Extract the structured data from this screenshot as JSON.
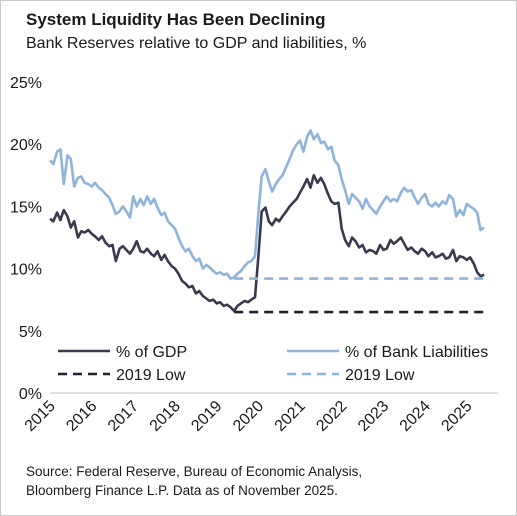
{
  "header": {
    "title": "System Liquidity Has Been Declining",
    "subtitle": "Bank Reserves relative to GDP and liabilities, %"
  },
  "footer": {
    "source_line1": "Source: Federal Reserve, Bureau of Economic Analysis,",
    "source_line2": "Bloomberg Finance L.P. Data as of November 2025."
  },
  "colors": {
    "gdp": "#3a3a4e",
    "liabilities": "#8fb4d9",
    "gdp_low": "#1c2333",
    "liab_low": "#8fb4d9",
    "axis": "#bfbfbf"
  },
  "chart_data": {
    "type": "line",
    "title": "System Liquidity Has Been Declining",
    "subtitle": "Bank Reserves relative to GDP and liabilities, %",
    "xlim": [
      2015.0,
      2025.75
    ],
    "ylim": [
      0,
      25
    ],
    "y_ticks": [
      "0%",
      "5%",
      "10%",
      "15%",
      "20%",
      "25%"
    ],
    "x_ticks": [
      "2015",
      "2016",
      "2017",
      "2018",
      "2019",
      "2020",
      "2021",
      "2022",
      "2023",
      "2024",
      "2025"
    ],
    "x_tick_values": [
      2015,
      2016,
      2017,
      2018,
      2019,
      2020,
      2021,
      2022,
      2023,
      2024,
      2025
    ],
    "legend_placement": "bottom",
    "series": [
      {
        "name": "% of GDP",
        "style": "solid",
        "color": "#3a3a4e",
        "points": [
          [
            2015.0,
            14.0
          ],
          [
            2015.08,
            13.8
          ],
          [
            2015.17,
            14.5
          ],
          [
            2015.25,
            13.9
          ],
          [
            2015.33,
            14.7
          ],
          [
            2015.42,
            14.2
          ],
          [
            2015.5,
            13.3
          ],
          [
            2015.58,
            13.8
          ],
          [
            2015.67,
            12.5
          ],
          [
            2015.75,
            13.0
          ],
          [
            2015.83,
            12.9
          ],
          [
            2015.92,
            13.1
          ],
          [
            2016.0,
            12.8
          ],
          [
            2016.08,
            12.6
          ],
          [
            2016.17,
            12.3
          ],
          [
            2016.25,
            12.6
          ],
          [
            2016.33,
            12.1
          ],
          [
            2016.42,
            11.8
          ],
          [
            2016.5,
            11.9
          ],
          [
            2016.58,
            10.6
          ],
          [
            2016.67,
            11.6
          ],
          [
            2016.75,
            11.8
          ],
          [
            2016.83,
            11.5
          ],
          [
            2016.92,
            11.2
          ],
          [
            2017.0,
            11.6
          ],
          [
            2017.08,
            12.2
          ],
          [
            2017.17,
            11.4
          ],
          [
            2017.25,
            11.3
          ],
          [
            2017.33,
            11.6
          ],
          [
            2017.42,
            11.2
          ],
          [
            2017.5,
            11.0
          ],
          [
            2017.58,
            11.4
          ],
          [
            2017.67,
            10.7
          ],
          [
            2017.75,
            11.1
          ],
          [
            2017.83,
            10.6
          ],
          [
            2017.92,
            10.2
          ],
          [
            2018.0,
            10.0
          ],
          [
            2018.08,
            9.6
          ],
          [
            2018.17,
            9.0
          ],
          [
            2018.25,
            8.8
          ],
          [
            2018.33,
            8.5
          ],
          [
            2018.42,
            8.6
          ],
          [
            2018.5,
            8.0
          ],
          [
            2018.58,
            8.2
          ],
          [
            2018.67,
            7.8
          ],
          [
            2018.75,
            7.6
          ],
          [
            2018.83,
            7.4
          ],
          [
            2018.92,
            7.5
          ],
          [
            2019.0,
            7.2
          ],
          [
            2019.08,
            7.3
          ],
          [
            2019.17,
            7.0
          ],
          [
            2019.25,
            7.1
          ],
          [
            2019.33,
            6.9
          ],
          [
            2019.42,
            6.6
          ],
          [
            2019.5,
            7.0
          ],
          [
            2019.58,
            7.2
          ],
          [
            2019.67,
            7.4
          ],
          [
            2019.75,
            7.3
          ],
          [
            2019.83,
            7.5
          ],
          [
            2019.92,
            7.7
          ],
          [
            2020.0,
            11.0
          ],
          [
            2020.08,
            14.6
          ],
          [
            2020.17,
            14.9
          ],
          [
            2020.25,
            13.8
          ],
          [
            2020.33,
            13.5
          ],
          [
            2020.42,
            14.0
          ],
          [
            2020.5,
            13.8
          ],
          [
            2020.58,
            14.2
          ],
          [
            2020.67,
            14.6
          ],
          [
            2020.75,
            15.0
          ],
          [
            2020.83,
            15.3
          ],
          [
            2020.92,
            15.6
          ],
          [
            2021.0,
            16.1
          ],
          [
            2021.08,
            16.6
          ],
          [
            2021.17,
            17.2
          ],
          [
            2021.25,
            16.5
          ],
          [
            2021.33,
            17.5
          ],
          [
            2021.42,
            16.9
          ],
          [
            2021.5,
            17.3
          ],
          [
            2021.58,
            16.8
          ],
          [
            2021.67,
            16.0
          ],
          [
            2021.75,
            15.4
          ],
          [
            2021.83,
            15.2
          ],
          [
            2021.92,
            15.3
          ],
          [
            2022.0,
            13.2
          ],
          [
            2022.08,
            12.3
          ],
          [
            2022.17,
            11.8
          ],
          [
            2022.25,
            12.5
          ],
          [
            2022.33,
            12.2
          ],
          [
            2022.42,
            11.7
          ],
          [
            2022.5,
            11.9
          ],
          [
            2022.58,
            11.3
          ],
          [
            2022.67,
            11.5
          ],
          [
            2022.75,
            11.4
          ],
          [
            2022.83,
            11.2
          ],
          [
            2022.92,
            11.9
          ],
          [
            2023.0,
            11.5
          ],
          [
            2023.08,
            11.6
          ],
          [
            2023.17,
            12.3
          ],
          [
            2023.25,
            12.0
          ],
          [
            2023.33,
            12.2
          ],
          [
            2023.42,
            12.5
          ],
          [
            2023.5,
            12.0
          ],
          [
            2023.58,
            11.5
          ],
          [
            2023.67,
            11.7
          ],
          [
            2023.75,
            11.4
          ],
          [
            2023.83,
            11.2
          ],
          [
            2023.92,
            11.6
          ],
          [
            2024.0,
            11.4
          ],
          [
            2024.08,
            11.0
          ],
          [
            2024.17,
            11.3
          ],
          [
            2024.25,
            10.9
          ],
          [
            2024.33,
            11.0
          ],
          [
            2024.42,
            11.2
          ],
          [
            2024.5,
            10.8
          ],
          [
            2024.58,
            10.9
          ],
          [
            2024.67,
            11.5
          ],
          [
            2024.75,
            10.6
          ],
          [
            2024.83,
            11.0
          ],
          [
            2024.92,
            10.9
          ],
          [
            2025.0,
            10.7
          ],
          [
            2025.08,
            10.9
          ],
          [
            2025.17,
            10.4
          ],
          [
            2025.25,
            9.7
          ],
          [
            2025.33,
            9.4
          ],
          [
            2025.42,
            9.5
          ]
        ]
      },
      {
        "name": "% of Bank Liabilities",
        "style": "solid",
        "color": "#8fb4d9",
        "points": [
          [
            2015.0,
            18.7
          ],
          [
            2015.08,
            18.4
          ],
          [
            2015.17,
            19.4
          ],
          [
            2015.25,
            19.6
          ],
          [
            2015.33,
            16.8
          ],
          [
            2015.42,
            19.1
          ],
          [
            2015.5,
            18.8
          ],
          [
            2015.58,
            16.6
          ],
          [
            2015.67,
            17.3
          ],
          [
            2015.75,
            17.4
          ],
          [
            2015.83,
            16.9
          ],
          [
            2015.92,
            16.8
          ],
          [
            2016.0,
            16.6
          ],
          [
            2016.08,
            16.9
          ],
          [
            2016.17,
            16.5
          ],
          [
            2016.25,
            16.3
          ],
          [
            2016.33,
            16.0
          ],
          [
            2016.42,
            15.7
          ],
          [
            2016.5,
            15.1
          ],
          [
            2016.58,
            14.4
          ],
          [
            2016.67,
            14.6
          ],
          [
            2016.75,
            15.0
          ],
          [
            2016.83,
            14.6
          ],
          [
            2016.92,
            14.1
          ],
          [
            2017.0,
            15.8
          ],
          [
            2017.08,
            15.0
          ],
          [
            2017.17,
            15.6
          ],
          [
            2017.25,
            15.1
          ],
          [
            2017.33,
            15.8
          ],
          [
            2017.42,
            15.2
          ],
          [
            2017.5,
            15.6
          ],
          [
            2017.58,
            14.9
          ],
          [
            2017.67,
            14.3
          ],
          [
            2017.75,
            14.5
          ],
          [
            2017.83,
            13.8
          ],
          [
            2017.92,
            13.5
          ],
          [
            2018.0,
            13.2
          ],
          [
            2018.08,
            12.5
          ],
          [
            2018.17,
            11.8
          ],
          [
            2018.25,
            11.4
          ],
          [
            2018.33,
            11.6
          ],
          [
            2018.42,
            11.0
          ],
          [
            2018.5,
            10.6
          ],
          [
            2018.58,
            10.8
          ],
          [
            2018.67,
            10.0
          ],
          [
            2018.75,
            10.3
          ],
          [
            2018.83,
            10.1
          ],
          [
            2018.92,
            9.8
          ],
          [
            2019.0,
            9.6
          ],
          [
            2019.08,
            9.7
          ],
          [
            2019.17,
            9.5
          ],
          [
            2019.25,
            9.6
          ],
          [
            2019.33,
            9.2
          ],
          [
            2019.42,
            9.3
          ],
          [
            2019.5,
            9.6
          ],
          [
            2019.58,
            9.8
          ],
          [
            2019.67,
            10.2
          ],
          [
            2019.75,
            10.5
          ],
          [
            2019.83,
            10.6
          ],
          [
            2019.92,
            11.0
          ],
          [
            2020.0,
            14.5
          ],
          [
            2020.08,
            17.4
          ],
          [
            2020.17,
            18.0
          ],
          [
            2020.25,
            17.0
          ],
          [
            2020.33,
            16.2
          ],
          [
            2020.42,
            16.8
          ],
          [
            2020.5,
            17.2
          ],
          [
            2020.58,
            17.5
          ],
          [
            2020.67,
            18.2
          ],
          [
            2020.75,
            18.8
          ],
          [
            2020.83,
            19.5
          ],
          [
            2020.92,
            20.0
          ],
          [
            2021.0,
            20.3
          ],
          [
            2021.08,
            19.4
          ],
          [
            2021.17,
            20.6
          ],
          [
            2021.25,
            21.1
          ],
          [
            2021.33,
            20.4
          ],
          [
            2021.42,
            20.8
          ],
          [
            2021.5,
            20.1
          ],
          [
            2021.58,
            20.2
          ],
          [
            2021.67,
            19.6
          ],
          [
            2021.75,
            19.8
          ],
          [
            2021.83,
            18.7
          ],
          [
            2021.92,
            18.3
          ],
          [
            2022.0,
            17.2
          ],
          [
            2022.08,
            16.3
          ],
          [
            2022.17,
            15.2
          ],
          [
            2022.25,
            16.0
          ],
          [
            2022.33,
            15.7
          ],
          [
            2022.42,
            15.4
          ],
          [
            2022.5,
            14.8
          ],
          [
            2022.58,
            15.6
          ],
          [
            2022.67,
            15.0
          ],
          [
            2022.75,
            14.7
          ],
          [
            2022.83,
            14.4
          ],
          [
            2022.92,
            15.0
          ],
          [
            2023.0,
            15.4
          ],
          [
            2023.08,
            15.8
          ],
          [
            2023.17,
            15.4
          ],
          [
            2023.25,
            15.6
          ],
          [
            2023.33,
            15.4
          ],
          [
            2023.42,
            16.1
          ],
          [
            2023.5,
            16.5
          ],
          [
            2023.58,
            16.2
          ],
          [
            2023.67,
            16.3
          ],
          [
            2023.75,
            15.7
          ],
          [
            2023.83,
            15.2
          ],
          [
            2023.92,
            15.7
          ],
          [
            2024.0,
            16.0
          ],
          [
            2024.08,
            15.2
          ],
          [
            2024.17,
            15.0
          ],
          [
            2024.25,
            15.3
          ],
          [
            2024.33,
            15.0
          ],
          [
            2024.42,
            15.4
          ],
          [
            2024.5,
            15.2
          ],
          [
            2024.58,
            15.9
          ],
          [
            2024.67,
            15.6
          ],
          [
            2024.75,
            14.2
          ],
          [
            2024.83,
            14.7
          ],
          [
            2024.92,
            14.3
          ],
          [
            2025.0,
            15.2
          ],
          [
            2025.08,
            15.0
          ],
          [
            2025.17,
            14.8
          ],
          [
            2025.25,
            14.5
          ],
          [
            2025.33,
            13.1
          ],
          [
            2025.42,
            13.3
          ]
        ]
      },
      {
        "name": "2019 Low",
        "style": "dashed",
        "color": "#1c2333",
        "points": [
          [
            2019.42,
            6.5
          ],
          [
            2025.5,
            6.5
          ]
        ]
      },
      {
        "name": "2019 Low",
        "style": "dashed",
        "color": "#8fb4d9",
        "points": [
          [
            2019.42,
            9.2
          ],
          [
            2025.5,
            9.2
          ]
        ]
      }
    ]
  }
}
